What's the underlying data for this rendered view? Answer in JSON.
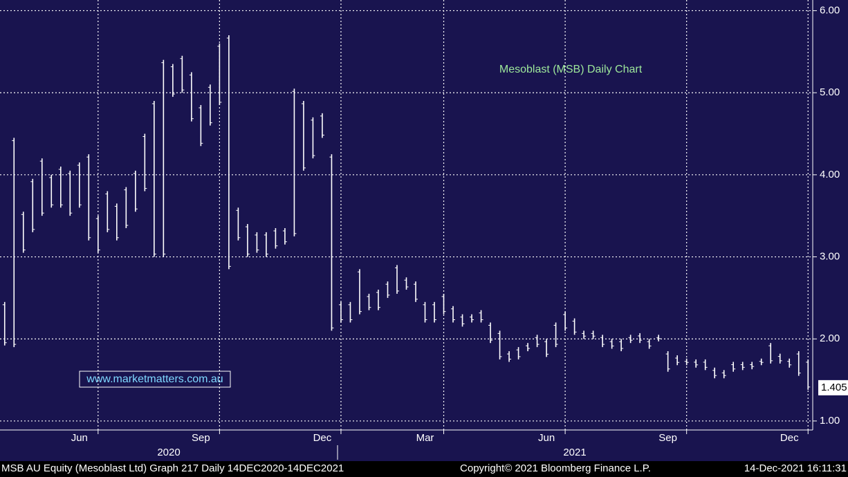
{
  "chart_data": {
    "type": "hilo",
    "title": "Mesoblast (MSB) Daily Chart",
    "watermark": "www.marketmatters.com.au",
    "footer_left": "MSB AU Equity (Mesoblast Ltd) Graph 217  Daily 14DEC2020-14DEC2021",
    "footer_center": "Copyright© 2021 Bloomberg Finance L.P.",
    "footer_right": "14-Dec-2021 16:11:31",
    "categories": [
      null,
      null,
      null,
      null,
      null,
      null,
      null,
      null,
      "Jun",
      null,
      null,
      null,
      null,
      null,
      null,
      null,
      null,
      null,
      null,
      null,
      null,
      "Sep",
      null,
      null,
      null,
      null,
      null,
      null,
      null,
      null,
      null,
      null,
      null,
      null,
      "Dec",
      null,
      null,
      null,
      null,
      null,
      null,
      null,
      null,
      null,
      null,
      "Mar",
      null,
      null,
      null,
      null,
      null,
      null,
      null,
      null,
      null,
      null,
      null,
      null,
      "Jun",
      null,
      null,
      null,
      null,
      null,
      null,
      null,
      null,
      null,
      null,
      null,
      null,
      "Sep",
      null,
      null,
      null,
      null,
      null,
      null,
      null,
      null,
      null,
      null,
      null,
      null,
      "Dec",
      null,
      null
    ],
    "x_group_labels": [
      "2020",
      "2021"
    ],
    "high": [
      2.45,
      4.45,
      3.55,
      3.95,
      4.2,
      4.0,
      4.1,
      4.05,
      4.15,
      4.25,
      3.5,
      3.8,
      3.65,
      3.85,
      4.05,
      4.5,
      4.9,
      5.4,
      5.35,
      5.45,
      5.25,
      4.85,
      5.1,
      5.6,
      5.7,
      3.6,
      3.4,
      3.3,
      3.3,
      3.35,
      3.35,
      5.05,
      4.9,
      4.7,
      4.75,
      4.25,
      2.45,
      2.45,
      2.85,
      2.55,
      2.6,
      2.7,
      2.9,
      2.75,
      2.7,
      2.45,
      2.45,
      2.55,
      2.4,
      2.3,
      2.3,
      2.35,
      2.2,
      2.1,
      1.85,
      1.9,
      1.95,
      2.05,
      2.0,
      2.2,
      2.33,
      2.25,
      2.1,
      2.1,
      2.05,
      2.0,
      2.0,
      2.05,
      2.07,
      2.0,
      2.05,
      1.85,
      1.8,
      1.76,
      1.75,
      1.75,
      1.65,
      1.62,
      1.72,
      1.72,
      1.72,
      1.76,
      1.95,
      1.82,
      1.76,
      1.85,
      1.75
    ],
    "low": [
      1.92,
      1.9,
      3.05,
      3.3,
      3.5,
      3.6,
      3.6,
      3.5,
      3.6,
      3.2,
      3.05,
      3.3,
      3.2,
      3.35,
      3.55,
      3.8,
      3.0,
      3.0,
      4.95,
      5.0,
      4.65,
      4.35,
      4.6,
      4.85,
      2.85,
      3.2,
      3.0,
      3.05,
      3.0,
      3.1,
      3.15,
      3.25,
      4.05,
      4.2,
      4.45,
      2.1,
      2.2,
      2.2,
      2.3,
      2.35,
      2.35,
      2.5,
      2.55,
      2.6,
      2.45,
      2.2,
      2.2,
      2.3,
      2.2,
      2.15,
      2.2,
      2.2,
      1.95,
      1.75,
      1.72,
      1.75,
      1.85,
      1.9,
      1.78,
      1.9,
      2.1,
      2.05,
      2.0,
      2.0,
      1.9,
      1.88,
      1.85,
      1.95,
      1.95,
      1.88,
      1.97,
      1.6,
      1.68,
      1.68,
      1.65,
      1.62,
      1.52,
      1.52,
      1.6,
      1.62,
      1.63,
      1.68,
      1.7,
      1.7,
      1.65,
      1.55,
      1.38
    ],
    "color": "#ffffff",
    "last_value": {
      "value": 1.405,
      "label": "1.405"
    },
    "ylim": [
      0.89,
      6.13
    ],
    "yticks": [
      {
        "value": 1,
        "label": "1.00"
      },
      {
        "value": 2,
        "label": "2.00"
      },
      {
        "value": 3,
        "label": "3.00"
      },
      {
        "value": 4,
        "label": "4.00"
      },
      {
        "value": 5,
        "label": "5.00"
      },
      {
        "value": 6,
        "label": "6.00"
      }
    ],
    "grid": true
  }
}
